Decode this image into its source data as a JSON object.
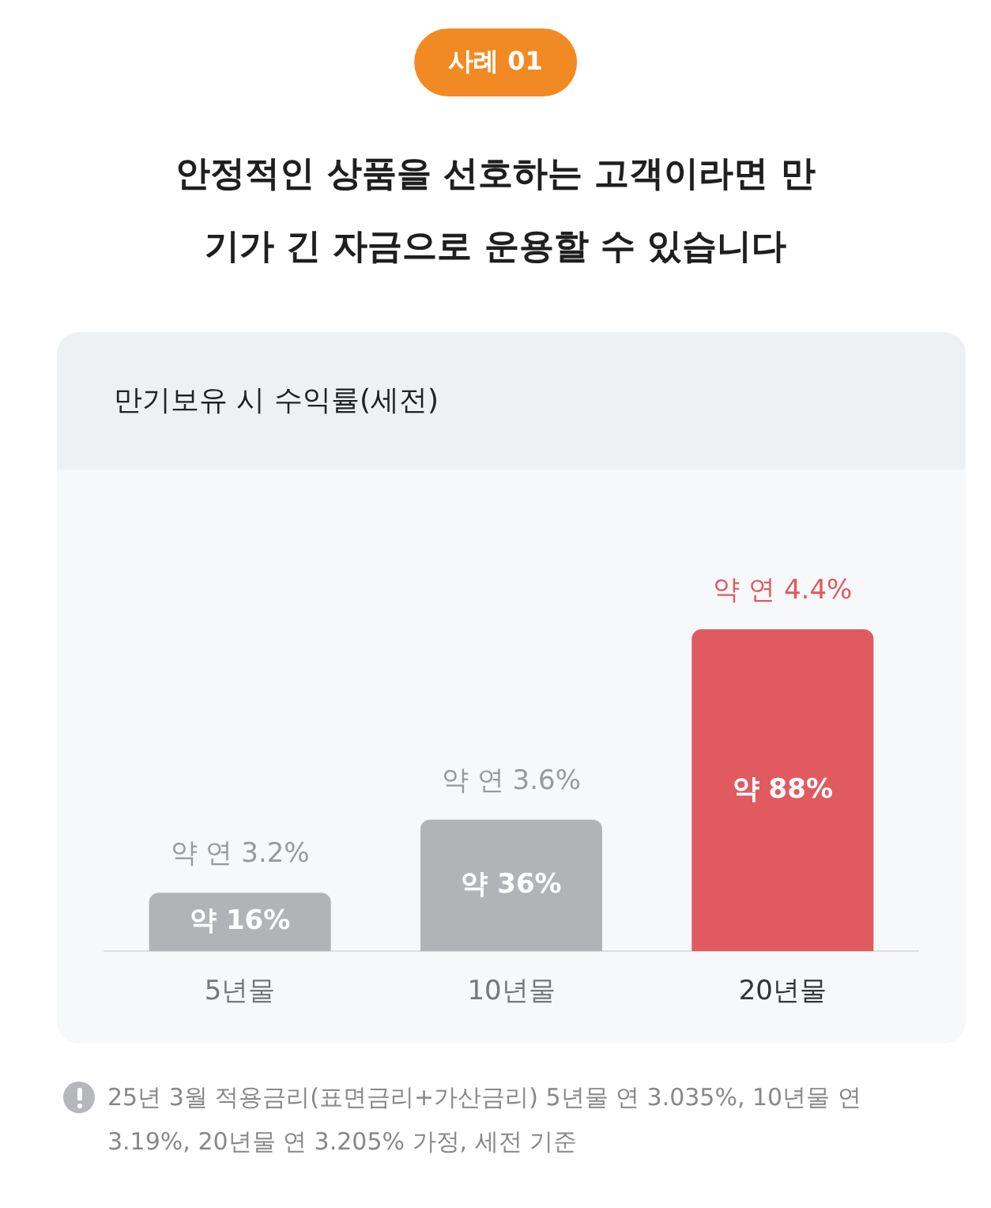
{
  "chart_data": {
    "type": "bar",
    "title": "안정적인 상품을 선호하는 고객이라면 만기가 긴 자금으로 운용할 수 있습니다",
    "subtitle": "만기보유 시 수익률(세전)",
    "categories": [
      "5년물",
      "10년물",
      "20년물"
    ],
    "values": [
      16,
      36,
      88
    ],
    "colors": [
      "#b1b3b7",
      "#b1b3b7",
      "#e05a5f"
    ],
    "value_labels": [
      "약 16%",
      "약 36%",
      "약 88%"
    ],
    "annotations": [
      "사례 01",
      {
        "text": "약 연 3.2%",
        "x": "5년물",
        "y": 16
      },
      {
        "text": "약 연 3.6%",
        "x": "10년물",
        "y": 36
      },
      {
        "text": "약 연 4.4%",
        "x": "20년물",
        "y": 88
      },
      "25년 3월 적용금리(표면금리+가산금리) 5년물 연 3.035%, 10년물 연 3.19%, 20년물 연  3.205% 가정, 세전 기준"
    ],
    "legend": false,
    "grid": false
  }
}
